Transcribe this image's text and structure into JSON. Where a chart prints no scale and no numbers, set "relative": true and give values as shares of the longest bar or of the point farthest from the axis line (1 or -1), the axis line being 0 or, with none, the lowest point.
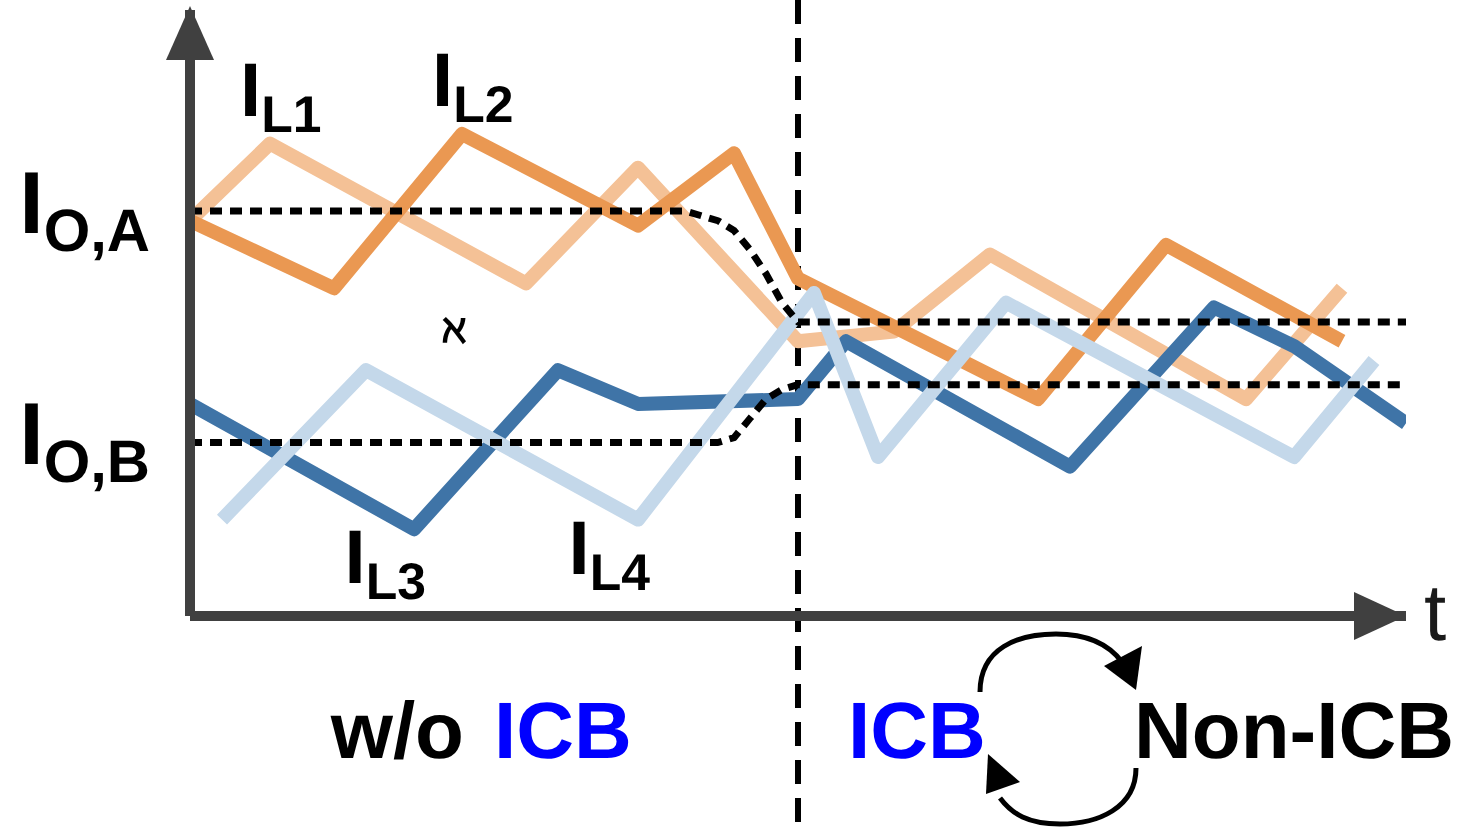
{
  "chart_data": {
    "type": "line",
    "relative": true,
    "xlabel": "t",
    "categories": [
      null,
      null,
      null,
      null,
      null,
      null,
      null,
      null,
      null,
      null,
      null,
      null,
      null,
      null,
      null,
      null,
      null,
      null,
      null,
      null,
      null,
      null,
      null,
      null,
      null,
      null,
      null,
      null,
      null,
      null,
      null,
      null,
      null,
      null,
      null,
      null,
      null,
      null,
      null,
      null,
      null,
      null,
      null,
      null,
      null,
      null,
      null,
      null,
      null,
      null,
      null,
      null,
      null,
      null,
      null,
      null,
      null,
      null,
      null,
      null,
      null,
      null,
      null,
      null,
      null,
      null,
      null,
      null,
      null,
      null,
      null,
      null,
      null,
      null,
      null,
      null,
      null
    ],
    "series": [
      {
        "name": "I$_{L1}$",
        "color": "#f4c196",
        "values": [
          0.82,
          null,
          null,
          null,
          null,
          0.98,
          null,
          null,
          null,
          null,
          null,
          null,
          null,
          null,
          null,
          null,
          null,
          null,
          null,
          null,
          null,
          0.69,
          null,
          null,
          null,
          null,
          null,
          null,
          0.93,
          null,
          null,
          null,
          null,
          null,
          null,
          null,
          null,
          null,
          0.57,
          null,
          null,
          null,
          null,
          null,
          0.59,
          null,
          null,
          null,
          null,
          null,
          0.75,
          null,
          null,
          null,
          null,
          null,
          null,
          null,
          null,
          null,
          null,
          null,
          null,
          null,
          null,
          null,
          0.45,
          null,
          null,
          null,
          null,
          null,
          0.68,
          null,
          null,
          null,
          null
        ]
      },
      {
        "name": "I$_{L2}$",
        "color": "#ea9852",
        "values": [
          0.82,
          null,
          null,
          null,
          null,
          null,
          null,
          null,
          null,
          0.68,
          null,
          null,
          null,
          null,
          null,
          null,
          null,
          1.0,
          null,
          null,
          null,
          null,
          null,
          null,
          null,
          null,
          null,
          null,
          0.81,
          null,
          null,
          null,
          null,
          null,
          0.96,
          null,
          null,
          null,
          0.7,
          null,
          null,
          null,
          null,
          null,
          null,
          null,
          null,
          null,
          null,
          null,
          null,
          null,
          null,
          0.45,
          null,
          null,
          null,
          null,
          null,
          null,
          null,
          0.77,
          null,
          null,
          null,
          null,
          null,
          null,
          null,
          null,
          null,
          null,
          0.57,
          null,
          null,
          null,
          null
        ]
      },
      {
        "name": "I$_{L3}$",
        "color": "#3f74a7",
        "values": [
          0.44,
          null,
          null,
          null,
          null,
          null,
          null,
          null,
          null,
          null,
          null,
          null,
          null,
          null,
          0.18,
          null,
          null,
          null,
          null,
          null,
          null,
          null,
          null,
          0.51,
          null,
          null,
          null,
          null,
          0.44,
          null,
          null,
          null,
          null,
          null,
          null,
          null,
          null,
          null,
          0.45,
          null,
          null,
          0.57,
          null,
          null,
          null,
          null,
          null,
          null,
          null,
          null,
          null,
          null,
          null,
          null,
          null,
          0.31,
          null,
          null,
          null,
          null,
          null,
          null,
          null,
          null,
          0.64,
          null,
          null,
          null,
          null,
          0.56,
          null,
          null,
          null,
          null,
          null,
          null,
          0.4
        ]
      },
      {
        "name": "I$_{L4}$",
        "color": "#c4d8ea",
        "values": [
          null,
          null,
          0.2,
          null,
          null,
          null,
          null,
          null,
          null,
          null,
          null,
          0.51,
          null,
          null,
          null,
          null,
          null,
          null,
          null,
          null,
          null,
          null,
          null,
          null,
          null,
          null,
          null,
          null,
          0.2,
          null,
          null,
          null,
          null,
          null,
          null,
          null,
          null,
          null,
          null,
          0.67,
          null,
          null,
          null,
          0.33,
          null,
          null,
          null,
          null,
          null,
          null,
          null,
          0.65,
          null,
          null,
          null,
          null,
          null,
          null,
          null,
          null,
          null,
          null,
          null,
          null,
          null,
          null,
          null,
          null,
          null,
          0.33,
          null,
          null,
          null,
          null,
          0.53,
          null,
          null
        ]
      },
      {
        "name": "I$_{O,A}$",
        "color": "#000000",
        "line_style": "dashed",
        "values": [
          0.84,
          null,
          null,
          null,
          null,
          null,
          null,
          null,
          null,
          null,
          null,
          null,
          null,
          null,
          null,
          null,
          null,
          null,
          null,
          null,
          null,
          null,
          null,
          null,
          null,
          null,
          null,
          null,
          null,
          null,
          null,
          0.84,
          null,
          0.82,
          0.8,
          0.76,
          0.71,
          0.65,
          0.61,
          null,
          null,
          null,
          null,
          null,
          null,
          null,
          null,
          null,
          null,
          null,
          null,
          null,
          null,
          null,
          null,
          null,
          null,
          null,
          null,
          null,
          null,
          null,
          null,
          null,
          null,
          null,
          null,
          null,
          null,
          null,
          null,
          null,
          null,
          null,
          null,
          null,
          0.61
        ]
      },
      {
        "name": "I$_{O,B}$",
        "color": "#000000",
        "line_style": "dashed",
        "values": [
          0.36,
          null,
          null,
          null,
          null,
          null,
          null,
          null,
          null,
          null,
          null,
          null,
          null,
          null,
          null,
          null,
          null,
          null,
          null,
          null,
          null,
          null,
          null,
          null,
          null,
          null,
          null,
          null,
          null,
          null,
          null,
          null,
          null,
          0.36,
          0.37,
          0.41,
          0.45,
          0.47,
          0.48,
          null,
          null,
          null,
          null,
          null,
          null,
          null,
          null,
          null,
          null,
          null,
          null,
          null,
          null,
          null,
          null,
          null,
          null,
          null,
          null,
          null,
          null,
          null,
          null,
          null,
          null,
          null,
          null,
          null,
          null,
          null,
          null,
          null,
          null,
          null,
          null,
          null,
          0.48
        ]
      }
    ],
    "annotations": [
      "w/o",
      "ICB",
      "ICB",
      "Non-ICB",
      "ℵ"
    ]
  }
}
